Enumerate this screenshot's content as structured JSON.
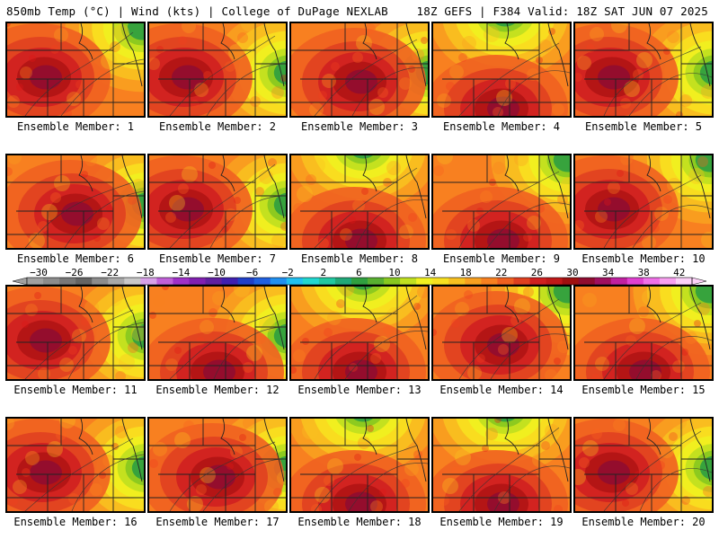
{
  "header": {
    "left": "850mb Temp (°C) | Wind (kts) | College of DuPage NEXLAB",
    "right": "18Z GEFS | F384 Valid: 18Z SAT JUN 07 2025"
  },
  "panels": [
    {
      "label": "Ensemble Member: 1",
      "hot": "west",
      "cool": "northeast"
    },
    {
      "label": "Ensemble Member: 2",
      "hot": "west",
      "cool": "east"
    },
    {
      "label": "Ensemble Member: 3",
      "hot": "center",
      "cool": "east"
    },
    {
      "label": "Ensemble Member: 4",
      "hot": "south",
      "cool": "north"
    },
    {
      "label": "Ensemble Member: 5",
      "hot": "west",
      "cool": "east"
    },
    {
      "label": "Ensemble Member: 6",
      "hot": "center",
      "cool": "east"
    },
    {
      "label": "Ensemble Member: 7",
      "hot": "west",
      "cool": "east"
    },
    {
      "label": "Ensemble Member: 8",
      "hot": "south",
      "cool": "north"
    },
    {
      "label": "Ensemble Member: 9",
      "hot": "south",
      "cool": "northeast"
    },
    {
      "label": "Ensemble Member: 10",
      "hot": "west",
      "cool": "northeast"
    },
    {
      "label": "Ensemble Member: 11",
      "hot": "west",
      "cool": "east"
    },
    {
      "label": "Ensemble Member: 12",
      "hot": "south",
      "cool": "east"
    },
    {
      "label": "Ensemble Member: 13",
      "hot": "south",
      "cool": "north"
    },
    {
      "label": "Ensemble Member: 14",
      "hot": "center",
      "cool": "northeast"
    },
    {
      "label": "Ensemble Member: 15",
      "hot": "south",
      "cool": "northeast"
    },
    {
      "label": "Ensemble Member: 16",
      "hot": "west",
      "cool": "east"
    },
    {
      "label": "Ensemble Member: 17",
      "hot": "center",
      "cool": "east"
    },
    {
      "label": "Ensemble Member: 18",
      "hot": "south",
      "cool": "north"
    },
    {
      "label": "Ensemble Member: 19",
      "hot": "south",
      "cool": "north"
    },
    {
      "label": "Ensemble Member: 20",
      "hot": "west",
      "cool": "east"
    }
  ],
  "colorbar": {
    "tick_labels": [
      "−30",
      "−26",
      "−22",
      "−18",
      "−14",
      "−10",
      "−6",
      "−2",
      "2",
      "6",
      "10",
      "14",
      "18",
      "22",
      "26",
      "30",
      "34",
      "38",
      "42"
    ],
    "colors": [
      "#a0a0a0",
      "#8c8c8c",
      "#787878",
      "#646464",
      "#8c8c8c",
      "#a8a8a8",
      "#c8c8c8",
      "#d8a0e8",
      "#c060d8",
      "#a030c8",
      "#8020b0",
      "#6020a0",
      "#4020b0",
      "#2040c8",
      "#2060e0",
      "#2090f0",
      "#20c0f0",
      "#20d8d0",
      "#20c8a0",
      "#20a878",
      "#30a040",
      "#58b030",
      "#88c820",
      "#c0e020",
      "#f0f020",
      "#f8e020",
      "#f8c020",
      "#f8a020",
      "#f88020",
      "#f06020",
      "#e04020",
      "#d02020",
      "#c01818",
      "#a01010",
      "#900c30",
      "#a01060",
      "#c020a0",
      "#e040d0",
      "#f070e8",
      "#f8a0f0",
      "#fcd0f8"
    ]
  }
}
